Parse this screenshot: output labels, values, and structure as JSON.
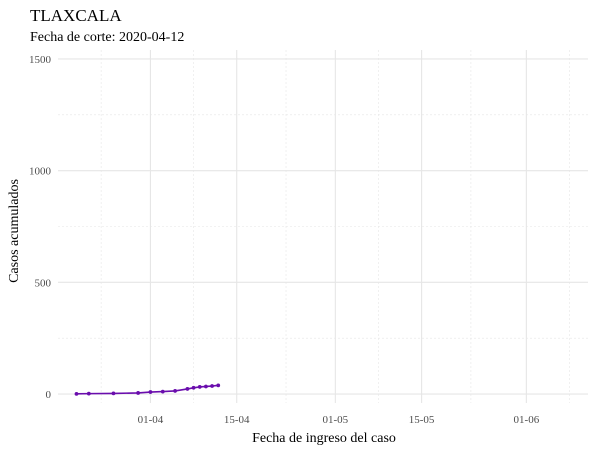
{
  "chart_data": {
    "type": "line",
    "title": "TLAXCALA",
    "subtitle": "Fecha de corte: 2020-04-12",
    "xlabel": "Fecha de ingreso del caso",
    "ylabel": "Casos acumulados",
    "x_ticks": [
      {
        "date": "2020-04-01",
        "label": "01-04"
      },
      {
        "date": "2020-04-15",
        "label": "15-04"
      },
      {
        "date": "2020-05-01",
        "label": "01-05"
      },
      {
        "date": "2020-05-15",
        "label": "15-05"
      },
      {
        "date": "2020-06-01",
        "label": "01-06"
      }
    ],
    "x_minor_ticks": [
      "2020-03-24",
      "2020-04-08",
      "2020-04-23",
      "2020-05-08",
      "2020-05-23",
      "2020-06-08"
    ],
    "xlim": [
      "2020-03-17",
      "2020-06-11"
    ],
    "ylim": [
      -40,
      1540
    ],
    "y_ticks": [
      0,
      500,
      1000,
      1500
    ],
    "y_minor_ticks": [
      250,
      750,
      1250
    ],
    "grid": true,
    "series": [
      {
        "color": "#6a0dad",
        "points": [
          {
            "x": "2020-03-20",
            "y": 1
          },
          {
            "x": "2020-03-22",
            "y": 2
          },
          {
            "x": "2020-03-26",
            "y": 3
          },
          {
            "x": "2020-03-30",
            "y": 5
          },
          {
            "x": "2020-04-01",
            "y": 9
          },
          {
            "x": "2020-04-03",
            "y": 11
          },
          {
            "x": "2020-04-05",
            "y": 14
          },
          {
            "x": "2020-04-07",
            "y": 23
          },
          {
            "x": "2020-04-08",
            "y": 28
          },
          {
            "x": "2020-04-09",
            "y": 32
          },
          {
            "x": "2020-04-10",
            "y": 34
          },
          {
            "x": "2020-04-11",
            "y": 36
          },
          {
            "x": "2020-04-12",
            "y": 39
          }
        ]
      }
    ]
  }
}
